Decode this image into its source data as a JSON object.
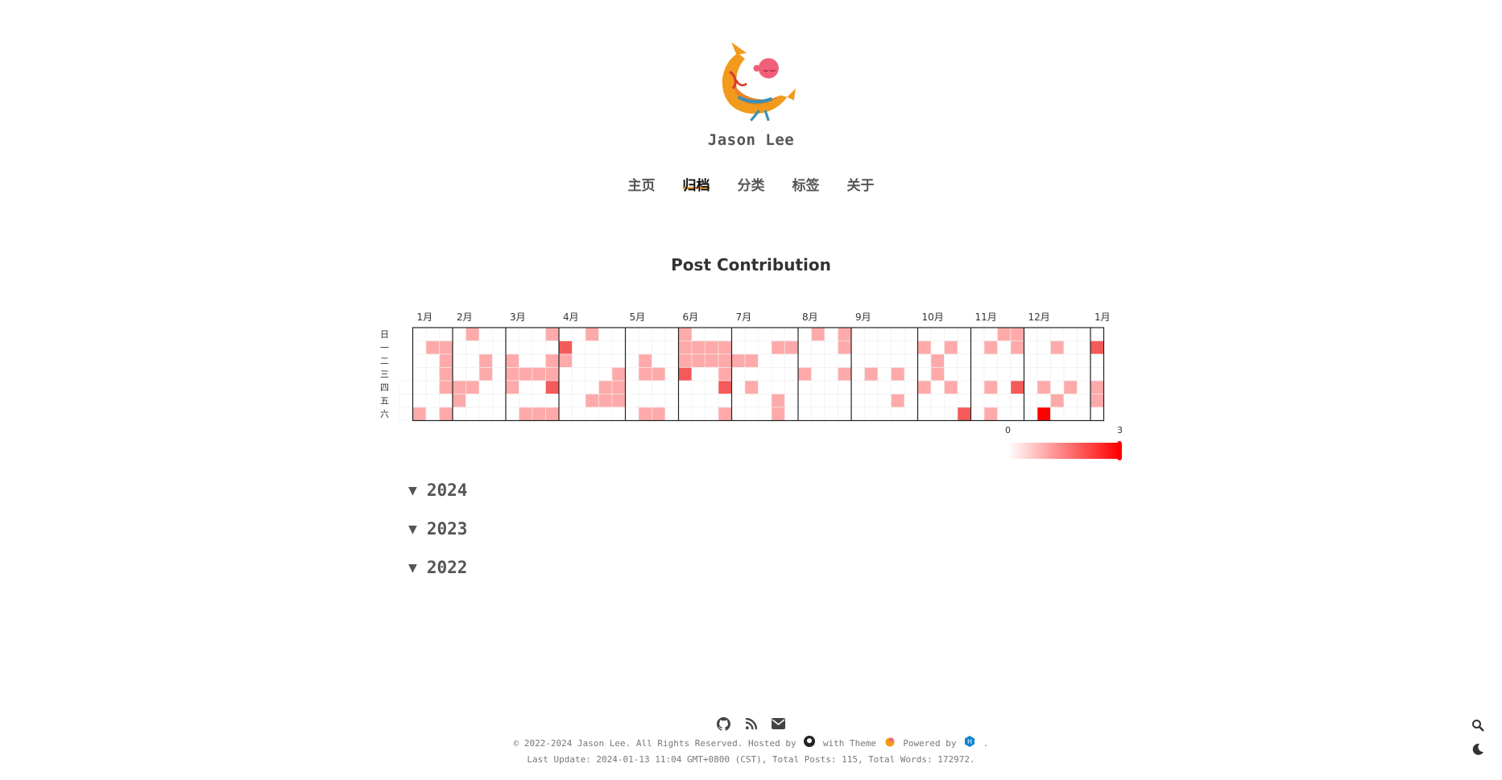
{
  "site": {
    "name": "Jason Lee"
  },
  "nav": [
    {
      "label": "主页",
      "active": false
    },
    {
      "label": "归档",
      "active": true
    },
    {
      "label": "分类",
      "active": false
    },
    {
      "label": "标签",
      "active": false
    },
    {
      "label": "关于",
      "active": false
    }
  ],
  "chart_title": "Post Contribution",
  "chart_data": {
    "type": "heatmap",
    "title": "Post Contribution",
    "month_labels": [
      "1月",
      "2月",
      "3月",
      "4月",
      "5月",
      "6月",
      "7月",
      "8月",
      "9月",
      "10月",
      "11月",
      "12月",
      "1月"
    ],
    "weekday_labels": [
      "日",
      "一",
      "二",
      "三",
      "四",
      "五",
      "六"
    ],
    "scale": {
      "min": 0,
      "max": 3,
      "colors": [
        "#ffffff",
        "#ff0000"
      ]
    },
    "weeks": 53,
    "week_rows_note": "each row = one weekday (日..六); each value = posts per day, columns = weeks",
    "grid": [
      [
        0,
        0,
        0,
        0,
        0,
        1,
        0,
        0,
        0,
        0,
        0,
        1,
        0,
        0,
        1,
        0,
        0,
        0,
        0,
        0,
        0,
        1,
        0,
        0,
        0,
        0,
        0,
        0,
        0,
        0,
        0,
        1,
        0,
        1,
        0,
        0,
        0,
        0,
        0,
        0,
        0,
        0,
        0,
        0,
        0,
        1,
        1,
        0,
        0,
        0,
        0,
        0,
        0
      ],
      [
        0,
        0,
        1,
        1,
        0,
        0,
        0,
        0,
        0,
        0,
        0,
        0,
        2,
        0,
        0,
        0,
        0,
        0,
        0,
        0,
        0,
        1,
        1,
        1,
        1,
        0,
        0,
        0,
        1,
        1,
        0,
        0,
        0,
        1,
        0,
        0,
        0,
        0,
        0,
        1,
        0,
        1,
        0,
        0,
        1,
        0,
        1,
        0,
        0,
        1,
        0,
        0,
        2
      ],
      [
        0,
        0,
        0,
        1,
        0,
        0,
        1,
        0,
        1,
        0,
        0,
        1,
        1,
        0,
        0,
        0,
        0,
        0,
        1,
        0,
        0,
        1,
        1,
        1,
        1,
        1,
        1,
        0,
        0,
        0,
        0,
        0,
        0,
        0,
        0,
        0,
        0,
        0,
        0,
        0,
        1,
        0,
        0,
        0,
        0,
        0,
        0,
        0,
        0,
        0,
        0,
        0,
        0
      ],
      [
        0,
        0,
        0,
        1,
        0,
        0,
        1,
        0,
        1,
        1,
        1,
        1,
        0,
        0,
        0,
        0,
        1,
        0,
        1,
        1,
        0,
        2,
        0,
        0,
        1,
        0,
        0,
        0,
        0,
        0,
        1,
        0,
        0,
        1,
        0,
        1,
        0,
        1,
        0,
        0,
        1,
        0,
        0,
        0,
        0,
        0,
        0,
        0,
        0,
        0,
        0,
        0,
        0
      ],
      [
        0,
        0,
        0,
        1,
        1,
        1,
        0,
        0,
        1,
        0,
        0,
        2,
        0,
        0,
        0,
        1,
        1,
        0,
        0,
        0,
        0,
        0,
        0,
        0,
        2,
        0,
        1,
        0,
        0,
        0,
        0,
        0,
        0,
        0,
        0,
        0,
        0,
        0,
        0,
        1,
        0,
        1,
        0,
        0,
        1,
        0,
        2,
        0,
        1,
        0,
        1,
        0,
        1
      ],
      [
        0,
        0,
        0,
        0,
        1,
        0,
        0,
        0,
        0,
        0,
        0,
        0,
        0,
        0,
        1,
        1,
        1,
        0,
        0,
        0,
        0,
        0,
        0,
        0,
        0,
        0,
        0,
        0,
        1,
        0,
        0,
        0,
        0,
        0,
        0,
        0,
        0,
        1,
        0,
        0,
        0,
        0,
        0,
        0,
        0,
        0,
        0,
        0,
        0,
        1,
        0,
        0,
        1
      ],
      [
        0,
        1,
        0,
        1,
        0,
        0,
        0,
        0,
        0,
        1,
        1,
        1,
        0,
        0,
        0,
        0,
        0,
        0,
        1,
        1,
        0,
        0,
        0,
        0,
        1,
        0,
        0,
        0,
        1,
        0,
        0,
        0,
        0,
        0,
        0,
        0,
        0,
        0,
        0,
        0,
        0,
        0,
        2,
        0,
        1,
        0,
        0,
        0,
        3,
        0,
        0,
        0,
        0
      ]
    ]
  },
  "years": [
    "2024",
    "2023",
    "2022"
  ],
  "footer": {
    "copyright": "© 2022-2024 Jason Lee. All Rights Reserved. Hosted by",
    "with_theme": "with Theme",
    "powered_by": "Powered by",
    "period": ".",
    "last_update": "Last Update: 2024-01-13 11:04 GMT+0800 (CST), Total Posts: 115, Total Words: 172972."
  },
  "icons": [
    "github-icon",
    "rss-icon",
    "mail-icon",
    "search-icon",
    "moon-icon"
  ]
}
